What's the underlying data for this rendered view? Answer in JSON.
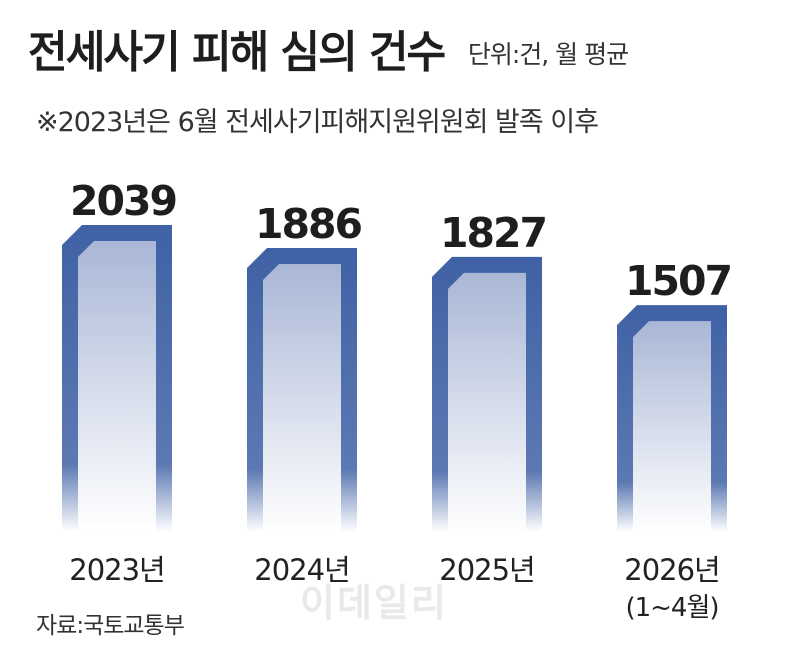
{
  "header": {
    "title": "전세사기 피해 심의 건수",
    "unit": "단위:건, 월 평균",
    "note": "※2023년은 6월 전세사기피해지원위원회 발족 이후"
  },
  "footer": {
    "source": "자료:국토교통부",
    "watermark": "이데일리"
  },
  "colors": {
    "bar_frame": "#3f61a5",
    "bar_fill_top": "#a9b7d6",
    "bar_fill_bottom": "#ffffff"
  },
  "chart_data": {
    "type": "bar",
    "categories": [
      "2023년",
      "2024년",
      "2025년",
      "2026년"
    ],
    "category_notes": [
      "",
      "",
      "",
      "(1~4월)"
    ],
    "values": [
      2039,
      1886,
      1827,
      1507
    ],
    "title": "전세사기 피해 심의 건수",
    "subtitle": "※2023년은 6월 전세사기피해지원위원회 발족 이후",
    "unit": "단위:건, 월 평균",
    "grid": false,
    "legend": "none"
  }
}
